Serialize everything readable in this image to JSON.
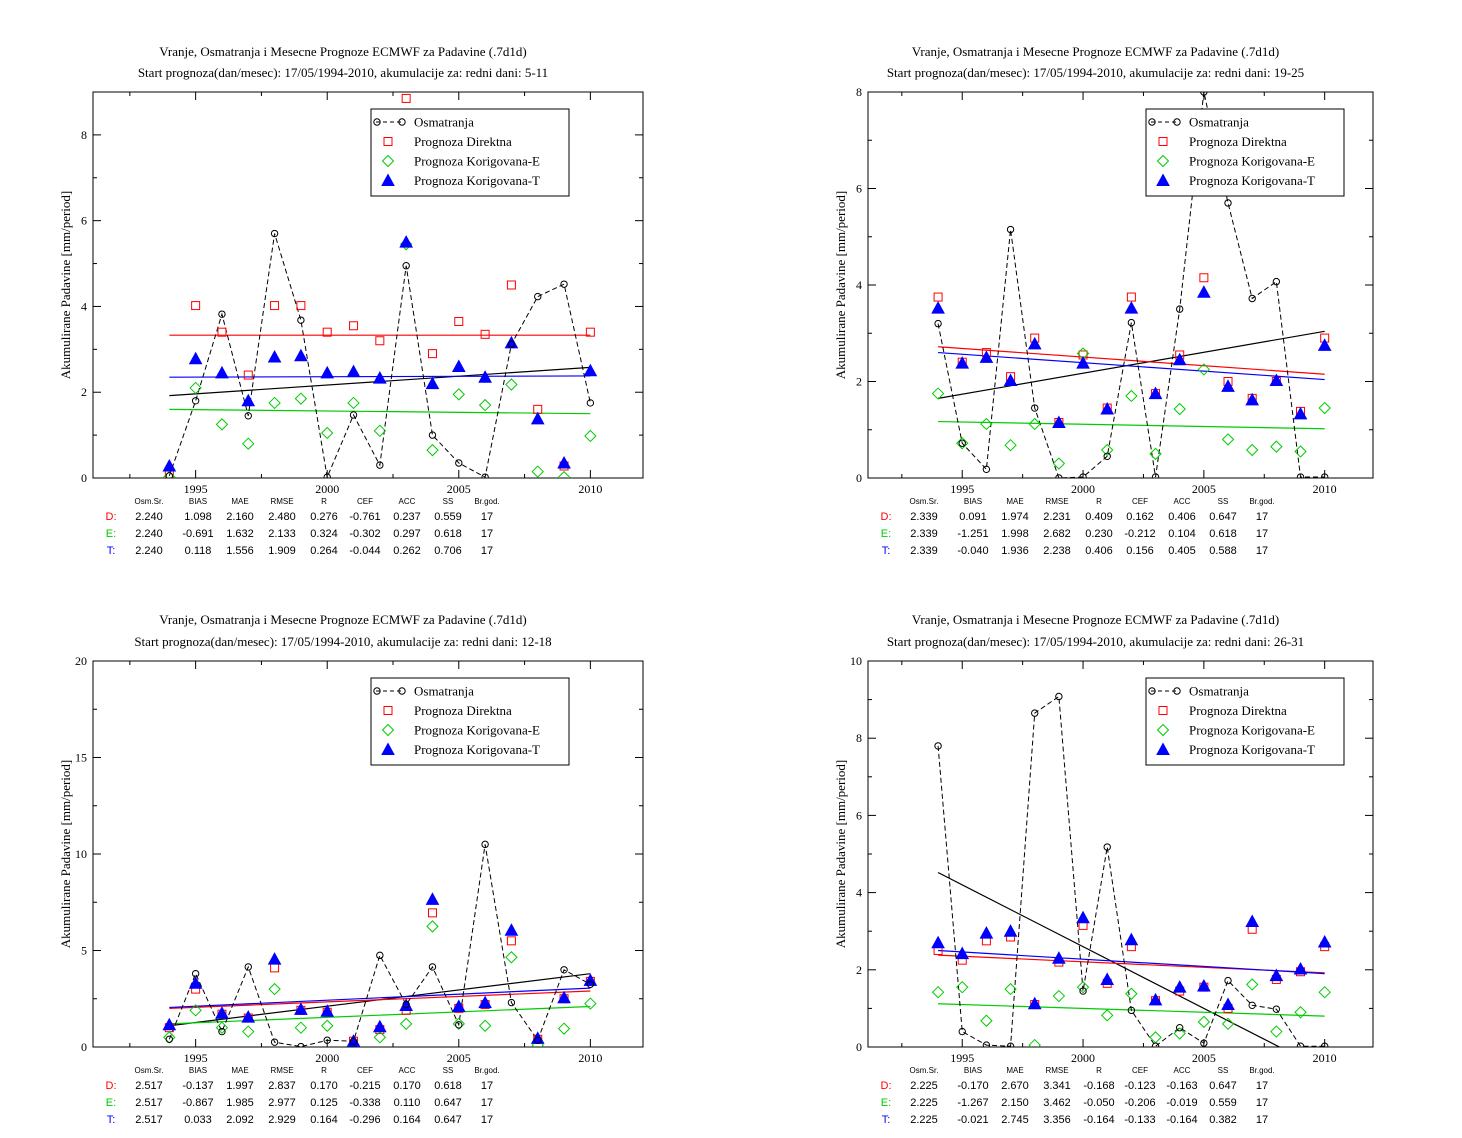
{
  "stat_headers": [
    "Osm.Sr.",
    "BIAS",
    "MAE",
    "RMSE",
    "R",
    "CEF",
    "ACC",
    "SS",
    "Br.god."
  ],
  "legend": [
    "Osmatranja",
    "Prognoza Direktna",
    "Prognoza Korigovana-E",
    "Prognoza Korigovana-T"
  ],
  "colors": {
    "obs": "#000000",
    "direct": "#ff0000",
    "corrE": "#00cc00",
    "corrT": "#0000ff"
  },
  "chart_data": [
    {
      "type": "scatter",
      "title": "Vranje, Osmatranja i Mesecne Prognoze ECMWF za Padavine (.7d1d)",
      "subtitle": "Start prognoza(dan/mesec): 17/05/1994-2010, akumulacije za: redni dani: 5-11",
      "ylabel": "Akumulirane Padavine [mm/period]",
      "xlim": [
        1991.1,
        2012
      ],
      "ylim": [
        0,
        9
      ],
      "xticks": [
        1995,
        2000,
        2005,
        2010
      ],
      "yticks": [
        0,
        2,
        4,
        6,
        8
      ],
      "x": [
        1994,
        1995,
        1996,
        1997,
        1998,
        1999,
        2000,
        2001,
        2002,
        2003,
        2004,
        2005,
        2006,
        2007,
        2008,
        2009,
        2010
      ],
      "series": [
        {
          "name": "Osmatranja",
          "values": [
            0.05,
            1.8,
            3.82,
            1.45,
            5.7,
            3.68,
            0.02,
            1.47,
            0.3,
            4.95,
            1.0,
            0.35,
            0.02,
            3.12,
            4.23,
            4.52,
            1.75
          ]
        },
        {
          "name": "Prognoza Direktna",
          "values": [
            0.08,
            4.02,
            3.4,
            2.4,
            4.02,
            4.02,
            3.4,
            3.55,
            3.2,
            8.85,
            2.9,
            3.65,
            3.35,
            4.5,
            1.6,
            0.28,
            3.4
          ]
        },
        {
          "name": "Prognoza Korigovana-E",
          "values": [
            0.02,
            2.1,
            1.25,
            0.8,
            1.75,
            1.85,
            1.05,
            1.75,
            1.1,
            5.45,
            0.65,
            1.95,
            1.7,
            2.18,
            0.15,
            0.02,
            0.98
          ]
        },
        {
          "name": "Prognoza Korigovana-T",
          "values": [
            0.28,
            2.78,
            2.45,
            1.8,
            2.82,
            2.85,
            2.45,
            2.48,
            2.33,
            5.5,
            2.2,
            2.6,
            2.35,
            3.15,
            1.38,
            0.35,
            2.5
          ]
        }
      ],
      "trends": {
        "obs": [
          1.92,
          2.58
        ],
        "direct": [
          3.33,
          3.33
        ],
        "corrE": [
          1.6,
          1.5
        ],
        "corrT": [
          2.35,
          2.38
        ]
      },
      "stats": [
        {
          "label": "D:",
          "values": [
            "2.240",
            "1.098",
            "2.160",
            "2.480",
            "0.276",
            "-0.761",
            "0.237",
            "0.559",
            "17"
          ]
        },
        {
          "label": "E:",
          "values": [
            "2.240",
            "-0.691",
            "1.632",
            "2.133",
            "0.324",
            "-0.302",
            "0.297",
            "0.618",
            "17"
          ]
        },
        {
          "label": "T:",
          "values": [
            "2.240",
            "0.118",
            "1.556",
            "1.909",
            "0.264",
            "-0.044",
            "0.262",
            "0.706",
            "17"
          ]
        }
      ]
    },
    {
      "type": "scatter",
      "title": "Vranje, Osmatranja i Mesecne Prognoze ECMWF za Padavine (.7d1d)",
      "subtitle": "Start prognoza(dan/mesec): 17/05/1994-2010, akumulacije za: redni dani: 19-25",
      "ylabel": "Akumulirane Padavine [mm/period]",
      "xlim": [
        1991.1,
        2012
      ],
      "ylim": [
        0,
        8
      ],
      "xticks": [
        1995,
        2000,
        2005,
        2010
      ],
      "yticks": [
        0,
        2,
        4,
        6,
        8
      ],
      "x": [
        1994,
        1995,
        1996,
        1997,
        1998,
        1999,
        2000,
        2001,
        2002,
        2003,
        2004,
        2005,
        2006,
        2007,
        2008,
        2009,
        2010
      ],
      "series": [
        {
          "name": "Osmatranja",
          "values": [
            3.2,
            0.72,
            0.18,
            5.15,
            1.45,
            0.0,
            0.02,
            0.45,
            3.22,
            0.02,
            3.5,
            8.0,
            5.7,
            3.72,
            4.07,
            0.02,
            0.02
          ]
        },
        {
          "name": "Prognoza Direktna",
          "values": [
            3.75,
            2.4,
            2.6,
            2.1,
            2.9,
            1.15,
            2.55,
            1.45,
            3.75,
            1.75,
            2.55,
            4.15,
            2.0,
            1.65,
            2.0,
            1.38,
            2.9
          ]
        },
        {
          "name": "Prognoza Korigovana-E",
          "values": [
            1.75,
            0.72,
            1.12,
            0.68,
            1.12,
            0.3,
            2.58,
            0.58,
            1.7,
            0.5,
            1.43,
            2.25,
            0.8,
            0.58,
            0.65,
            0.55,
            1.45
          ]
        },
        {
          "name": "Prognoza Korigovana-T",
          "values": [
            3.52,
            2.38,
            2.5,
            2.02,
            2.78,
            1.15,
            2.38,
            1.43,
            3.52,
            1.75,
            2.45,
            3.85,
            1.9,
            1.62,
            2.02,
            1.33,
            2.75
          ]
        }
      ],
      "trends": {
        "obs": [
          1.65,
          3.04
        ],
        "direct": [
          2.72,
          2.15
        ],
        "corrE": [
          1.17,
          1.02
        ],
        "corrT": [
          2.6,
          2.04
        ]
      },
      "stats": [
        {
          "label": "D:",
          "values": [
            "2.339",
            "0.091",
            "1.974",
            "2.231",
            "0.409",
            "0.162",
            "0.406",
            "0.647",
            "17"
          ]
        },
        {
          "label": "E:",
          "values": [
            "2.339",
            "-1.251",
            "1.998",
            "2.682",
            "0.230",
            "-0.212",
            "0.104",
            "0.618",
            "17"
          ]
        },
        {
          "label": "T:",
          "values": [
            "2.339",
            "-0.040",
            "1.936",
            "2.238",
            "0.406",
            "0.156",
            "0.405",
            "0.588",
            "17"
          ]
        }
      ]
    },
    {
      "type": "scatter",
      "title": "Vranje, Osmatranja i Mesecne Prognoze ECMWF za Padavine (.7d1d)",
      "subtitle": "Start prognoza(dan/mesec): 17/05/1994-2010, akumulacije za: redni dani: 12-18",
      "ylabel": "Akumulirane Padavine [mm/period]",
      "xlim": [
        1991.1,
        2012
      ],
      "ylim": [
        0,
        20
      ],
      "xticks": [
        1995,
        2000,
        2005,
        2010
      ],
      "yticks": [
        0,
        5,
        10,
        15,
        20
      ],
      "x": [
        1994,
        1995,
        1996,
        1997,
        1998,
        1999,
        2000,
        2001,
        2002,
        2003,
        2004,
        2005,
        2006,
        2007,
        2008,
        2009,
        2010
      ],
      "series": [
        {
          "name": "Osmatranja",
          "values": [
            0.4,
            3.8,
            0.8,
            4.15,
            0.25,
            0.02,
            0.35,
            0.3,
            4.75,
            2.2,
            4.15,
            1.15,
            10.5,
            2.3,
            0.35,
            4.0,
            3.25
          ]
        },
        {
          "name": "Prognoza Direktna",
          "values": [
            1.0,
            3.0,
            1.7,
            1.5,
            4.1,
            1.9,
            1.8,
            0.3,
            0.9,
            1.9,
            6.95,
            2.0,
            2.2,
            5.5,
            0.4,
            2.5,
            3.4
          ]
        },
        {
          "name": "Prognoza Korigovana-E",
          "values": [
            0.5,
            1.9,
            1.0,
            0.8,
            3.0,
            1.0,
            1.1,
            0.05,
            0.5,
            1.2,
            6.25,
            1.2,
            1.1,
            4.65,
            0.1,
            0.95,
            2.25
          ]
        },
        {
          "name": "Prognoza Korigovana-T",
          "values": [
            1.15,
            3.3,
            1.75,
            1.55,
            4.55,
            1.95,
            1.85,
            0.3,
            1.05,
            2.15,
            7.65,
            2.1,
            2.3,
            6.05,
            0.45,
            2.55,
            3.45
          ]
        }
      ],
      "trends": {
        "obs": [
          1.1,
          3.8
        ],
        "direct": [
          2.0,
          2.9
        ],
        "corrE": [
          1.2,
          2.1
        ],
        "corrT": [
          2.05,
          3.05
        ]
      },
      "stats": [
        {
          "label": "D:",
          "values": [
            "2.517",
            "-0.137",
            "1.997",
            "2.837",
            "0.170",
            "-0.215",
            "0.170",
            "0.618",
            "17"
          ]
        },
        {
          "label": "E:",
          "values": [
            "2.517",
            "-0.867",
            "1.985",
            "2.977",
            "0.125",
            "-0.338",
            "0.110",
            "0.647",
            "17"
          ]
        },
        {
          "label": "T:",
          "values": [
            "2.517",
            "0.033",
            "2.092",
            "2.929",
            "0.164",
            "-0.296",
            "0.164",
            "0.647",
            "17"
          ]
        }
      ]
    },
    {
      "type": "scatter",
      "title": "Vranje, Osmatranja i Mesecne Prognoze ECMWF za Padavine (.7d1d)",
      "subtitle": "Start prognoza(dan/mesec): 17/05/1994-2010, akumulacije za: redni dani: 26-31",
      "ylabel": "Akumulirane Padavine [mm/period]",
      "xlim": [
        1991.1,
        2012
      ],
      "ylim": [
        0,
        10
      ],
      "xticks": [
        1995,
        2000,
        2005,
        2010
      ],
      "yticks": [
        0,
        2,
        4,
        6,
        8,
        10
      ],
      "x": [
        1994,
        1995,
        1996,
        1997,
        1998,
        1999,
        2000,
        2001,
        2002,
        2003,
        2004,
        2005,
        2006,
        2007,
        2008,
        2009,
        2010
      ],
      "series": [
        {
          "name": "Osmatranja",
          "values": [
            7.8,
            0.4,
            0.05,
            0.02,
            8.65,
            9.08,
            1.45,
            5.18,
            0.95,
            0.02,
            0.5,
            0.1,
            1.72,
            1.08,
            0.98,
            0.02,
            0.02
          ]
        },
        {
          "name": "Prognoza Direktna",
          "values": [
            2.5,
            2.25,
            2.75,
            2.85,
            1.1,
            2.2,
            3.15,
            1.65,
            2.6,
            1.2,
            1.45,
            1.55,
            1.0,
            3.05,
            1.75,
            1.95,
            2.6
          ]
        },
        {
          "name": "Prognoza Korigovana-E",
          "values": [
            1.42,
            1.55,
            0.68,
            1.5,
            0.05,
            1.32,
            1.55,
            0.82,
            1.38,
            0.25,
            0.35,
            0.65,
            0.6,
            1.62,
            0.4,
            0.9,
            1.42
          ]
        },
        {
          "name": "Prognoza Korigovana-T",
          "values": [
            2.7,
            2.42,
            2.95,
            3.0,
            1.12,
            2.3,
            3.35,
            1.75,
            2.78,
            1.22,
            1.55,
            1.58,
            1.1,
            3.25,
            1.85,
            2.02,
            2.72
          ]
        }
      ],
      "trends": {
        "obs": [
          4.52,
          -0.6
        ],
        "direct": [
          2.38,
          1.92
        ],
        "corrE": [
          1.12,
          0.8
        ],
        "corrT": [
          2.5,
          1.9
        ]
      },
      "stats": [
        {
          "label": "D:",
          "values": [
            "2.225",
            "-0.170",
            "2.670",
            "3.341",
            "-0.168",
            "-0.123",
            "-0.163",
            "0.647",
            "17"
          ]
        },
        {
          "label": "E:",
          "values": [
            "2.225",
            "-1.267",
            "2.150",
            "3.462",
            "-0.050",
            "-0.206",
            "-0.019",
            "0.559",
            "17"
          ]
        },
        {
          "label": "T:",
          "values": [
            "2.225",
            "-0.021",
            "2.745",
            "3.356",
            "-0.164",
            "-0.133",
            "-0.164",
            "0.382",
            "17"
          ]
        }
      ]
    }
  ]
}
